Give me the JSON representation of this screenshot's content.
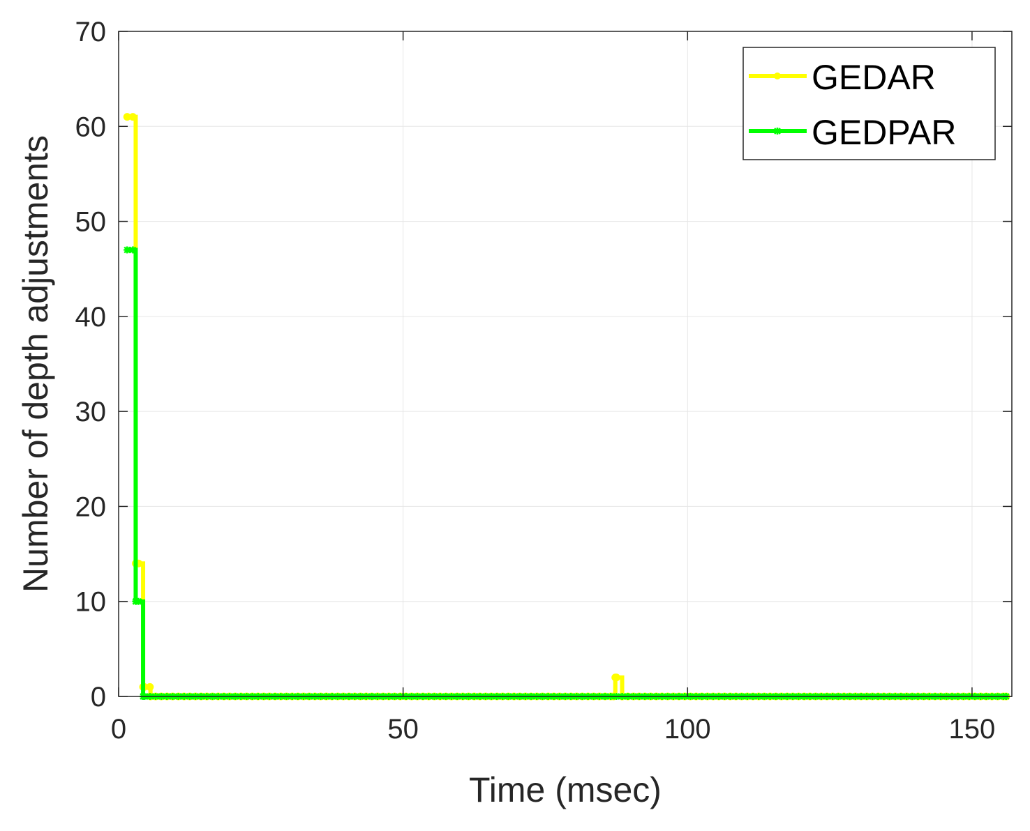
{
  "chart_data": {
    "type": "line",
    "title": "",
    "xlabel": "Time (msec)",
    "ylabel": "Number of depth adjustments",
    "xlim": [
      0,
      157
    ],
    "ylim": [
      0,
      70
    ],
    "xticks": [
      0,
      50,
      100,
      150
    ],
    "yticks": [
      0,
      10,
      20,
      30,
      40,
      50,
      60,
      70
    ],
    "xtick_labels": [
      "0",
      "50",
      "100",
      "150"
    ],
    "ytick_labels": [
      "0",
      "10",
      "20",
      "30",
      "40",
      "50",
      "60",
      "70"
    ],
    "grid": true,
    "legend_position": "top-right",
    "step": true,
    "marker_spacing": 1,
    "series": [
      {
        "name": "GEDAR",
        "color": "#ffff00",
        "marker": "circle",
        "points": [
          [
            1.5,
            61
          ],
          [
            3,
            14
          ],
          [
            4.3,
            1
          ],
          [
            5.6,
            0
          ],
          [
            87,
            0
          ],
          [
            87.3,
            2
          ],
          [
            88.5,
            0
          ],
          [
            156,
            0
          ]
        ]
      },
      {
        "name": "GEDPAR",
        "color": "#00ff00",
        "marker": "asterisk",
        "points": [
          [
            1.5,
            47
          ],
          [
            3,
            10
          ],
          [
            4.3,
            0
          ],
          [
            156,
            0
          ]
        ]
      }
    ]
  }
}
